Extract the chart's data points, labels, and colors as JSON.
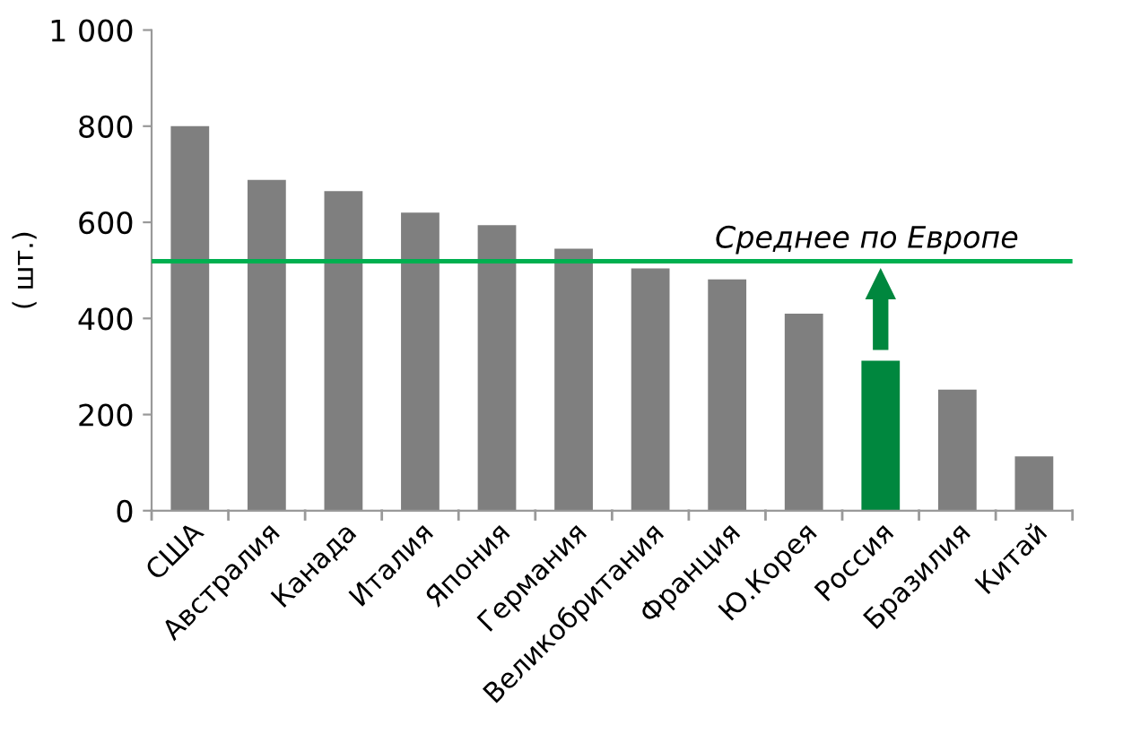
{
  "chart_data": {
    "type": "bar",
    "ylabel": "( шт.)",
    "categories": [
      "США",
      "Австралия",
      "Канада",
      "Италия",
      "Япония",
      "Германия",
      "Великобритания",
      "Франция",
      "Ю.Корея",
      "Россия",
      "Бразилия",
      "Китай"
    ],
    "values": [
      800,
      688,
      665,
      620,
      594,
      545,
      504,
      481,
      410,
      312,
      252,
      113
    ],
    "colors": [
      "#7f7f7f",
      "#7f7f7f",
      "#7f7f7f",
      "#7f7f7f",
      "#7f7f7f",
      "#7f7f7f",
      "#7f7f7f",
      "#7f7f7f",
      "#7f7f7f",
      "#00873e",
      "#7f7f7f",
      "#7f7f7f"
    ],
    "ylim": [
      0,
      1000
    ],
    "yticks": [
      0,
      200,
      400,
      600,
      800,
      {
        "value": 1000,
        "label": "1 000"
      }
    ],
    "ref_lines": [
      {
        "axis": "y",
        "value": 519,
        "label": "Среднее по Европе",
        "color": "#00b050"
      }
    ],
    "grid": false,
    "legend": false
  }
}
